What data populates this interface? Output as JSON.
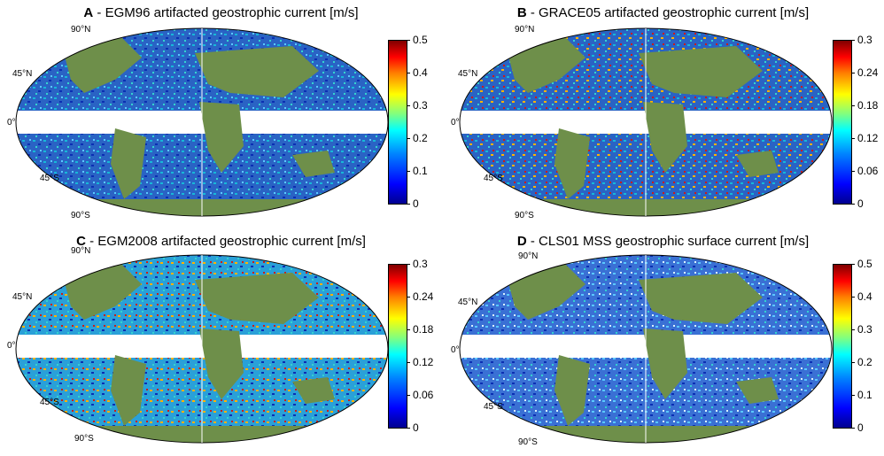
{
  "panels": [
    {
      "letter": "A",
      "title": "EGM96 artifacted geostrophic current [m/s]",
      "lat_labels": {
        "n90": "90°N",
        "n45": "45°N",
        "eq": "0°",
        "s45": "45°S",
        "s90": "90°S"
      },
      "colorbar_ticks": [
        "0.5",
        "0.4",
        "0.3",
        "0.2",
        "0.1",
        "0"
      ]
    },
    {
      "letter": "B",
      "title": "GRACE05 artifacted geostrophic  current [m/s]",
      "lat_labels": {
        "n90": "90°N",
        "n45": "45°N",
        "eq": "0°",
        "s45": "45°S",
        "s90": "90°S"
      },
      "colorbar_ticks": [
        "0.3",
        "0.24",
        "0.18",
        "0.12",
        "0.06",
        "0"
      ]
    },
    {
      "letter": "C",
      "title": "EGM2008 artifacted geostrophic current [m/s]",
      "lat_labels": {
        "n90": "90°N",
        "n45": "45°N",
        "eq": "0°",
        "s45": "45°S",
        "s90": "90°S"
      },
      "colorbar_ticks": [
        "0.3",
        "0.24",
        "0.18",
        "0.12",
        "0.06",
        "0"
      ]
    },
    {
      "letter": "D",
      "title": "CLS01 MSS geostrophic surface current [m/s]",
      "lat_labels": {
        "n90": "90°N",
        "n45": "45°N",
        "eq": "0°",
        "s45": "45°S",
        "s90": "90°S"
      },
      "colorbar_ticks": [
        "0.5",
        "0.4",
        "0.3",
        "0.2",
        "0.1",
        "0"
      ]
    }
  ],
  "colors": {
    "ocean": "#2a63c4",
    "land": "#6e8f4a",
    "equator_mask": "#ffffff",
    "colorbar_low": "#00008f",
    "colorbar_high": "#800000"
  }
}
